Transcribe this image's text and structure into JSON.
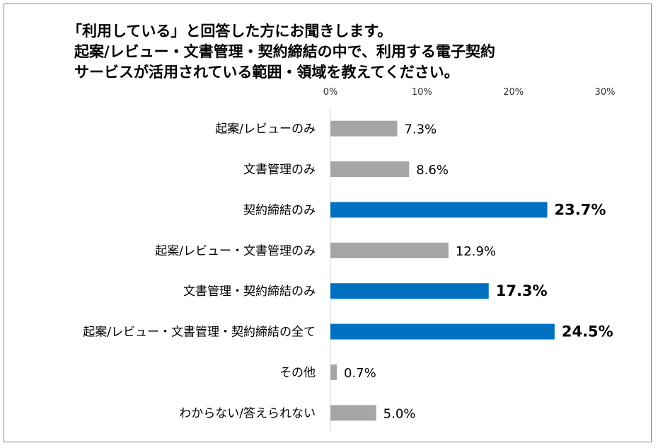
{
  "title": {
    "lines": [
      "「利用している」と回答した方にお聞きします。",
      "起案/レビュー・文書管理・契約締結の中で、利用する電子契約",
      "サービスが活用されている範囲・領域を教えてください。"
    ]
  },
  "chart_data": {
    "type": "bar",
    "orientation": "horizontal",
    "categories": [
      "起案/レビューのみ",
      "文書管理のみ",
      "契約締結のみ",
      "起案/レビュー・文書管理のみ",
      "文書管理・契約締結のみ",
      "起案/レビュー・文書管理・契約締結の全て",
      "その他",
      "わからない/答えられない"
    ],
    "values": [
      7.3,
      8.6,
      23.7,
      12.9,
      17.3,
      24.5,
      0.7,
      5.0
    ],
    "value_labels": [
      "7.3%",
      "8.6%",
      "23.7%",
      "12.9%",
      "17.3%",
      "24.5%",
      "0.7%",
      "5.0%"
    ],
    "highlighted": [
      false,
      false,
      true,
      false,
      true,
      true,
      false,
      false
    ],
    "xlim": [
      0,
      30
    ],
    "xticks": [
      0,
      10,
      20,
      30
    ],
    "xtick_labels": [
      "0%",
      "10%",
      "20%",
      "30%"
    ],
    "xaxis_position": "top",
    "grid": false,
    "colors": {
      "default": "#a6a6a6",
      "highlight": "#0070c0"
    }
  }
}
